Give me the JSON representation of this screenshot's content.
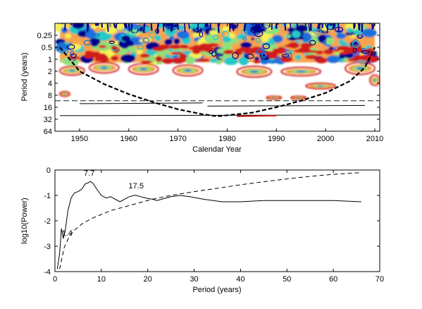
{
  "chart_data": [
    {
      "type": "heatmap",
      "title": "",
      "xlabel": "Calendar Year",
      "ylabel": "Period (years)",
      "xlim": [
        1945,
        2011
      ],
      "ylim": [
        0.125,
        64
      ],
      "y_scale": "log2",
      "y_reversed": true,
      "x_ticks": [
        1950,
        1960,
        1970,
        1980,
        1990,
        2000,
        2010
      ],
      "y_ticks": [
        0.25,
        0.5,
        1,
        2,
        4,
        8,
        16,
        32,
        64
      ],
      "y_tick_labels": [
        "0.25",
        "0.5",
        "1",
        "2",
        "4",
        "8",
        "16",
        "32",
        "64"
      ],
      "grid": false,
      "colormap": [
        "#00008b",
        "#1e6fd9",
        "#28c8c8",
        "#8fe07a",
        "#f5f055",
        "#f59a3a",
        "#d11a1a",
        "#7a0000"
      ],
      "cone_of_influence": {
        "style": "dashed",
        "years": [
          1946,
          1950,
          1955,
          1960,
          1965,
          1970,
          1975,
          1978,
          1985,
          1990,
          1995,
          2000,
          2005,
          2008,
          2010
        ],
        "periods": [
          0.5,
          2,
          4.2,
          7.5,
          12,
          18,
          24,
          27,
          22,
          16,
          11,
          7,
          3.5,
          1.6,
          0.5
        ]
      },
      "reference_line": {
        "style": "dashed",
        "period": 11
      },
      "significant_regions": [
        {
          "x0": 1946,
          "x1": 2010,
          "p0": 0.125,
          "p1": 1.2
        },
        {
          "x0": 1946,
          "x1": 1951,
          "p0": 1.5,
          "p1": 2.5
        },
        {
          "x0": 1952,
          "x1": 1958,
          "p0": 1.2,
          "p1": 2.2
        },
        {
          "x0": 1960,
          "x1": 1966,
          "p0": 1.3,
          "p1": 2.4
        },
        {
          "x0": 1969,
          "x1": 1975,
          "p0": 1.4,
          "p1": 2.6
        },
        {
          "x0": 1982,
          "x1": 1989,
          "p0": 1.5,
          "p1": 2.8
        },
        {
          "x0": 1991,
          "x1": 1999,
          "p0": 1.6,
          "p1": 2.6
        },
        {
          "x0": 1996,
          "x1": 2002,
          "p0": 4.0,
          "p1": 5.5
        },
        {
          "x0": 2004,
          "x1": 2010,
          "p0": 1.2,
          "p1": 2.4
        },
        {
          "x0": 2009,
          "x1": 2011,
          "p0": 2.5,
          "p1": 4.5
        },
        {
          "x0": 1946,
          "x1": 1948,
          "p0": 6.5,
          "p1": 8.5
        },
        {
          "x0": 1988,
          "x1": 1991,
          "p0": 8.5,
          "p1": 10
        },
        {
          "x0": 1993,
          "x1": 1996,
          "p0": 8.5,
          "p1": 10
        }
      ],
      "long_period_contours": [
        {
          "x0": 1950,
          "x1": 1975,
          "p": 13
        },
        {
          "x0": 1976,
          "x1": 2008,
          "p": 15
        },
        {
          "x0": 1946,
          "x1": 2011,
          "p": 26
        },
        {
          "x0": 1982,
          "x1": 1990,
          "p": 27
        }
      ]
    },
    {
      "type": "line",
      "title": "",
      "xlabel": "Period (years)",
      "ylabel": "log10(Power)",
      "xlim": [
        0,
        70
      ],
      "ylim": [
        -4,
        0
      ],
      "x_ticks": [
        0,
        10,
        20,
        30,
        40,
        50,
        60,
        70
      ],
      "y_ticks": [
        0,
        -1,
        -2,
        -3,
        -4
      ],
      "grid": false,
      "series": [
        {
          "line_style": "solid",
          "x": [
            0.5,
            1.0,
            1.4,
            1.8,
            2.2,
            2.8,
            3.5,
            4.2,
            5.0,
            5.8,
            6.5,
            7.2,
            7.7,
            8.3,
            9.0,
            10.0,
            11.0,
            12.0,
            13.0,
            14.0,
            15.0,
            16.0,
            17.0,
            17.5,
            18.5,
            19.5,
            21.0,
            22.0,
            23.0,
            25.0,
            27.0,
            29.0,
            32.0,
            36.0,
            40.0,
            45.0,
            50.0,
            55.0,
            60.0,
            66.0
          ],
          "y": [
            -3.9,
            -3.3,
            -2.3,
            -2.7,
            -2.4,
            -1.6,
            -1.1,
            -0.9,
            -0.85,
            -0.75,
            -0.55,
            -0.5,
            -0.45,
            -0.55,
            -0.75,
            -1.0,
            -1.1,
            -1.05,
            -1.15,
            -1.25,
            -1.15,
            -1.05,
            -1.0,
            -1.0,
            -1.05,
            -1.1,
            -1.15,
            -1.2,
            -1.15,
            -1.05,
            -1.0,
            -1.05,
            -1.15,
            -1.25,
            -1.25,
            -1.2,
            -1.2,
            -1.2,
            -1.2,
            -1.25
          ]
        },
        {
          "line_style": "dashed",
          "x": [
            1.0,
            2.0,
            3.0,
            4.0,
            5.0,
            6.0,
            8.0,
            10.0,
            12.0,
            15.0,
            18.0,
            21.0,
            25.0,
            30.0,
            35.0,
            40.0,
            45.0,
            50.0,
            55.0,
            60.0,
            66.0
          ],
          "y": [
            -3.9,
            -3.05,
            -2.65,
            -2.4,
            -2.25,
            -2.1,
            -1.9,
            -1.75,
            -1.6,
            -1.45,
            -1.3,
            -1.15,
            -1.0,
            -0.85,
            -0.72,
            -0.58,
            -0.46,
            -0.35,
            -0.25,
            -0.17,
            -0.1
          ]
        }
      ],
      "annotations": [
        {
          "text": "7.7",
          "x": 7.7,
          "y": -0.45
        },
        {
          "text": "17.5",
          "x": 17.5,
          "y": -1.0
        },
        {
          "text": "1.4",
          "x": 1.4,
          "y": -2.3
        }
      ]
    }
  ]
}
